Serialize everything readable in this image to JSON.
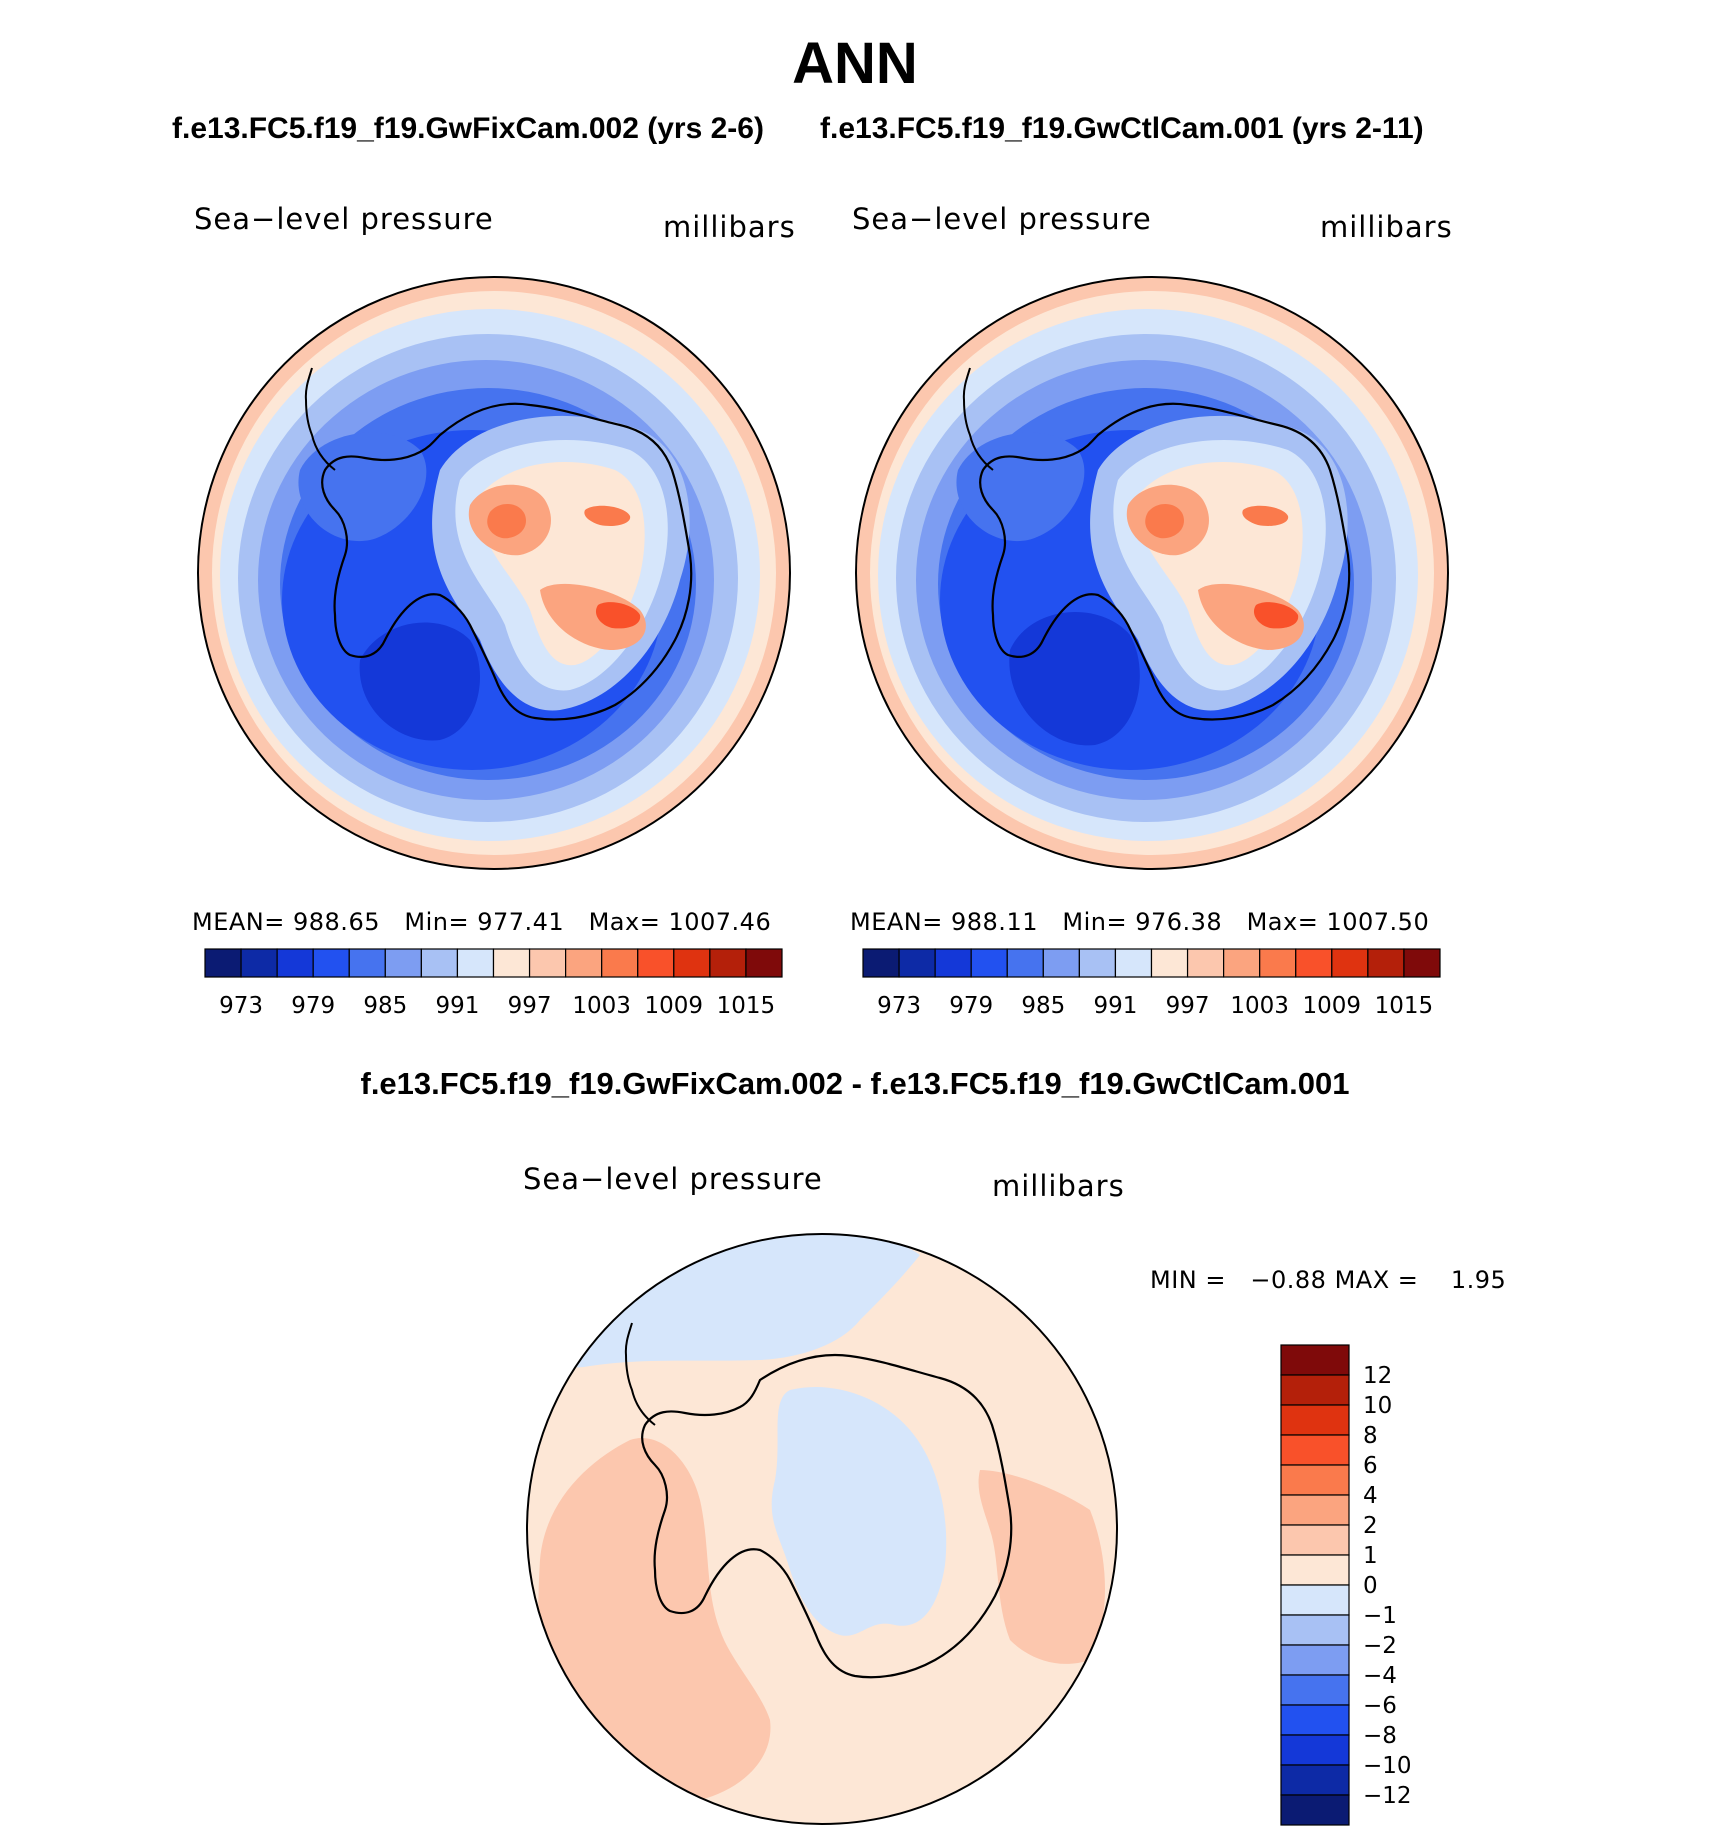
{
  "colors": {
    "abs_scale": [
      "#0b1b73",
      "#0d2aa6",
      "#1438d8",
      "#2251f0",
      "#4673ef",
      "#7d9df2",
      "#a8c1f4",
      "#d6e6fb",
      "#fde7d6",
      "#fcc7ae",
      "#fba47f",
      "#fa7a4c",
      "#f9512a",
      "#df3310",
      "#b4200a",
      "#7f0a0a"
    ],
    "diff_scale": [
      "#0b1b73",
      "#0d2aa6",
      "#1438d8",
      "#2251f0",
      "#4673ef",
      "#7d9df2",
      "#a8c1f4",
      "#d6e6fb",
      "#fde7d6",
      "#fcc7ae",
      "#fba47f",
      "#fa7a4c",
      "#f9512a",
      "#df3310",
      "#b4200a",
      "#7f0a0a"
    ]
  },
  "page": {
    "title": "ANN",
    "case_a_title": "f.e13.FC5.f19_f19.GwFixCam.002 (yrs 2-6)",
    "case_b_title": "f.e13.FC5.f19_f19.GwCtlCam.001 (yrs 2-11)",
    "diff_title": "f.e13.FC5.f19_f19.GwFixCam.002 - f.e13.FC5.f19_f19.GwCtlCam.001"
  },
  "panels": [
    {
      "variable": "Sea−level pressure",
      "units": "millibars",
      "mean_label": "MEAN=",
      "mean": "988.65",
      "min_label": "Min=",
      "min": "977.41",
      "max_label": "Max=",
      "max": "1007.46"
    },
    {
      "variable": "Sea−level pressure",
      "units": "millibars",
      "mean_label": "MEAN=",
      "mean": "988.11",
      "min_label": "Min=",
      "min": "976.38",
      "max_label": "Max=",
      "max": "1007.50"
    },
    {
      "variable": "Sea−level pressure",
      "units": "millibars",
      "min_label": "MIN =",
      "min": "−0.88",
      "max_label": "MAX =",
      "max": "1.95"
    }
  ],
  "chart_data": [
    {
      "type": "heatmap",
      "title": "f.e13.FC5.f19_f19.GwFixCam.002 (yrs 2-6)",
      "projection": "south polar stereographic",
      "variable": "Sea-level pressure",
      "units": "millibars",
      "stats": {
        "mean": 988.65,
        "min": 977.41,
        "max": 1007.46
      },
      "colorbar_levels": [
        973,
        976,
        979,
        982,
        985,
        988,
        991,
        994,
        997,
        1000,
        1003,
        1006,
        1009,
        1012,
        1015
      ],
      "colorbar_tick_labels": [
        "973",
        "979",
        "985",
        "991",
        "997",
        "1003",
        "1009",
        "1015"
      ]
    },
    {
      "type": "heatmap",
      "title": "f.e13.FC5.f19_f19.GwCtlCam.001 (yrs 2-11)",
      "projection": "south polar stereographic",
      "variable": "Sea-level pressure",
      "units": "millibars",
      "stats": {
        "mean": 988.11,
        "min": 976.38,
        "max": 1007.5
      },
      "colorbar_levels": [
        973,
        976,
        979,
        982,
        985,
        988,
        991,
        994,
        997,
        1000,
        1003,
        1006,
        1009,
        1012,
        1015
      ],
      "colorbar_tick_labels": [
        "973",
        "979",
        "985",
        "991",
        "997",
        "1003",
        "1009",
        "1015"
      ]
    },
    {
      "type": "heatmap",
      "title": "f.e13.FC5.f19_f19.GwFixCam.002 - f.e13.FC5.f19_f19.GwCtlCam.001",
      "projection": "south polar stereographic",
      "variable": "Sea-level pressure",
      "units": "millibars",
      "stats": {
        "min": -0.88,
        "max": 1.95
      },
      "colorbar_levels": [
        -12,
        -10,
        -8,
        -6,
        -4,
        -2,
        -1,
        0,
        1,
        2,
        4,
        6,
        8,
        10,
        12
      ],
      "colorbar_tick_labels": [
        "12",
        "10",
        "8",
        "6",
        "4",
        "2",
        "1",
        "0",
        "−1",
        "−2",
        "−4",
        "−6",
        "−8",
        "−10",
        "−12"
      ]
    }
  ]
}
